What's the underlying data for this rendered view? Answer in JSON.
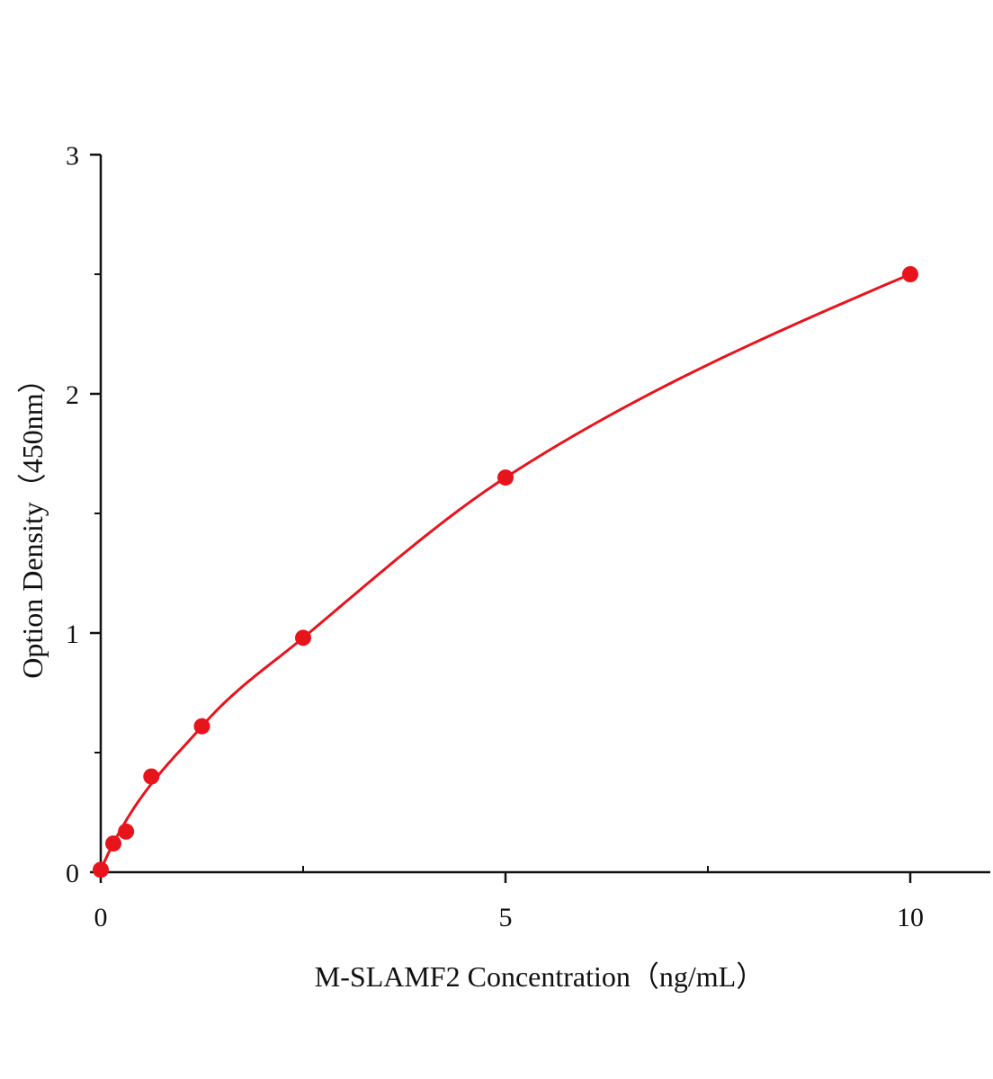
{
  "chart_data": {
    "type": "scatter",
    "title": "",
    "xlabel": "M-SLAMF2 Concentration（ng/mL）",
    "ylabel": "Option Density（450nm）",
    "xlim": [
      0,
      11
    ],
    "ylim": [
      0,
      3
    ],
    "xticks": [
      "0",
      "5",
      "10"
    ],
    "yticks": [
      "0",
      "1",
      "2",
      "3"
    ],
    "grid": false,
    "colors": {
      "series": "#e8141c",
      "axis": "#111111"
    },
    "series": [
      {
        "points": [
          {
            "x": 0,
            "y": 0.01
          },
          {
            "x": 0.156,
            "y": 0.12
          },
          {
            "x": 0.3125,
            "y": 0.17
          },
          {
            "x": 0.625,
            "y": 0.4
          },
          {
            "x": 1.25,
            "y": 0.61
          },
          {
            "x": 2.5,
            "y": 0.98
          },
          {
            "x": 5,
            "y": 1.65
          },
          {
            "x": 10,
            "y": 2.5
          }
        ],
        "fit_curve": true
      }
    ]
  }
}
